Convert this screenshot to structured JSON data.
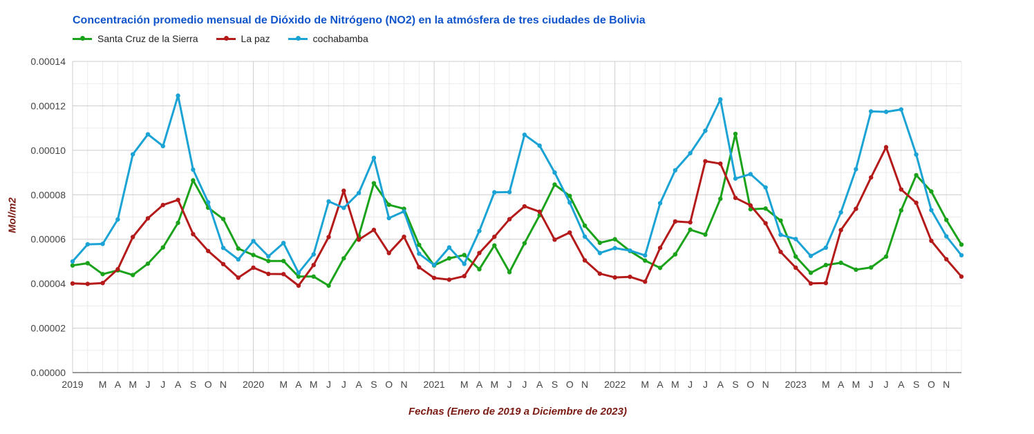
{
  "chart_data": {
    "type": "line",
    "title": "Concentración promedio mensual de Dióxido de Nitrógeno (NO2) en la atmósfera de tres ciudades de Bolivia",
    "xlabel": "Fechas (Enero de 2019 a Diciembre de 2023)",
    "ylabel": "Mol/m2",
    "ylim": [
      0,
      0.00014
    ],
    "y_ticks": [
      "0.00000",
      "0.00002",
      "0.00004",
      "0.00006",
      "0.00008",
      "0.00010",
      "0.00012",
      "0.00014"
    ],
    "x_tick_labels": [
      "2019",
      "",
      "M",
      "A",
      "M",
      "J",
      "J",
      "A",
      "S",
      "O",
      "N",
      "",
      "2020",
      "",
      "M",
      "A",
      "M",
      "J",
      "J",
      "A",
      "S",
      "O",
      "N",
      "",
      "2021",
      "",
      "M",
      "A",
      "M",
      "J",
      "J",
      "A",
      "S",
      "O",
      "N",
      "",
      "2022",
      "",
      "M",
      "A",
      "M",
      "J",
      "J",
      "A",
      "S",
      "O",
      "N",
      "",
      "2023",
      "",
      "M",
      "A",
      "M",
      "J",
      "J",
      "A",
      "S",
      "O",
      "N",
      ""
    ],
    "grid": true,
    "legend_position": "top-left",
    "colors": {
      "title": "#1155cc",
      "axis_title": "#7b1b14",
      "gridline": "#cccccc",
      "minor_gridline": "#ebebeb"
    },
    "series": [
      {
        "name": "Santa Cruz de la Sierra",
        "color": "#1aa31a",
        "values": [
          4.82e-05,
          4.92e-05,
          4.43e-05,
          4.6e-05,
          4.39e-05,
          4.9e-05,
          5.63e-05,
          6.74e-05,
          8.65e-05,
          7.42e-05,
          6.91e-05,
          5.58e-05,
          5.29e-05,
          5.02e-05,
          5.02e-05,
          4.32e-05,
          4.32e-05,
          3.91e-05,
          5.14e-05,
          6.14e-05,
          8.52e-05,
          7.55e-05,
          7.37e-05,
          5.75e-05,
          4.82e-05,
          5.14e-05,
          5.29e-05,
          4.65e-05,
          5.72e-05,
          4.52e-05,
          5.82e-05,
          7.08e-05,
          8.46e-05,
          7.95e-05,
          6.61e-05,
          5.84e-05,
          6e-05,
          5.47e-05,
          5.04e-05,
          4.71e-05,
          5.32e-05,
          6.43e-05,
          6.21e-05,
          7.82e-05,
          0.0001074,
          7.35e-05,
          7.38e-05,
          6.84e-05,
          5.22e-05,
          4.49e-05,
          4.84e-05,
          4.94e-05,
          4.63e-05,
          4.73e-05,
          5.22e-05,
          7.3e-05,
          8.88e-05,
          8.15e-05,
          6.87e-05,
          5.76e-05
        ]
      },
      {
        "name": "La paz",
        "color": "#b51a1a",
        "values": [
          4.01e-05,
          3.99e-05,
          4.03e-05,
          4.65e-05,
          6.1e-05,
          6.94e-05,
          7.54e-05,
          7.77e-05,
          6.23e-05,
          5.47e-05,
          4.88e-05,
          4.27e-05,
          4.72e-05,
          4.44e-05,
          4.43e-05,
          3.91e-05,
          4.84e-05,
          6.1e-05,
          8.18e-05,
          5.98e-05,
          6.42e-05,
          5.38e-05,
          6.11e-05,
          4.74e-05,
          4.26e-05,
          4.18e-05,
          4.34e-05,
          5.38e-05,
          6.11e-05,
          6.9e-05,
          7.48e-05,
          7.24e-05,
          5.98e-05,
          6.3e-05,
          5.05e-05,
          4.45e-05,
          4.28e-05,
          4.31e-05,
          4.09e-05,
          5.61e-05,
          6.8e-05,
          6.76e-05,
          9.51e-05,
          9.4e-05,
          7.86e-05,
          7.52e-05,
          6.72e-05,
          5.43e-05,
          4.72e-05,
          4.01e-05,
          4.03e-05,
          6.41e-05,
          7.37e-05,
          8.78e-05,
          0.0001014,
          8.24e-05,
          7.64e-05,
          5.93e-05,
          5.1e-05,
          4.32e-05
        ]
      },
      {
        "name": "cochabamba",
        "color": "#1aa3d4",
        "values": [
          5e-05,
          5.77e-05,
          5.79e-05,
          6.89e-05,
          9.82e-05,
          0.0001072,
          0.0001019,
          0.0001246,
          9.13e-05,
          7.66e-05,
          5.61e-05,
          5.09e-05,
          5.92e-05,
          5.23e-05,
          5.83e-05,
          4.49e-05,
          5.32e-05,
          7.7e-05,
          7.41e-05,
          8.08e-05,
          9.66e-05,
          6.95e-05,
          7.25e-05,
          5.35e-05,
          4.84e-05,
          5.63e-05,
          4.89e-05,
          6.37e-05,
          8.11e-05,
          8.12e-05,
          0.000107,
          0.0001021,
          9e-05,
          7.65e-05,
          6.12e-05,
          5.38e-05,
          5.6e-05,
          5.49e-05,
          5.27e-05,
          7.62e-05,
          9.1e-05,
          9.87e-05,
          0.0001088,
          0.0001229,
          8.73e-05,
          8.93e-05,
          8.33e-05,
          6.2e-05,
          6.01e-05,
          5.25e-05,
          5.62e-05,
          7.21e-05,
          9.15e-05,
          0.0001175,
          0.0001173,
          0.0001184,
          9.81e-05,
          7.31e-05,
          6.13e-05,
          5.28e-05
        ]
      }
    ]
  }
}
